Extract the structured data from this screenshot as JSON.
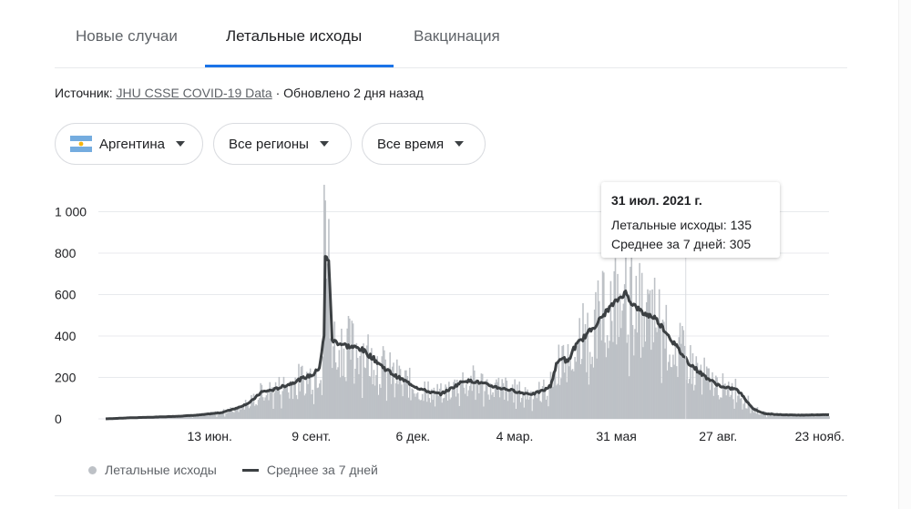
{
  "tabs": [
    {
      "label": "Новые случаи",
      "active": false
    },
    {
      "label": "Летальные исходы",
      "active": true
    },
    {
      "label": "Вакцинация",
      "active": false
    }
  ],
  "source": {
    "prefix": "Источник: ",
    "link": "JHU CSSE COVID-19 Data",
    "suffix": " · Обновлено 2 дня назад"
  },
  "filters": {
    "country": "Аргентина",
    "country_flag_icon": "argentina-flag-icon",
    "region": "Все регионы",
    "period": "Все время"
  },
  "tooltip": {
    "date": "31 июл. 2021 г.",
    "deaths_label": "Летальные исходы: ",
    "deaths_value": "135",
    "avg_label": "Среднее за 7 дней: ",
    "avg_value": "305"
  },
  "legend": {
    "bars": "Летальные исходы",
    "line": "Среднее за 7 дней"
  },
  "colors": {
    "accent": "#1a73e8",
    "bars": "#bdc1c6",
    "line": "#3c4043"
  },
  "chart_data": {
    "type": "bar",
    "series": [
      {
        "name": "Летальные исходы",
        "kind": "bar",
        "color": "#bdc1c6"
      },
      {
        "name": "Среднее за 7 дней",
        "kind": "line",
        "color": "#3c4043"
      }
    ],
    "ylim": [
      0,
      1150
    ],
    "yticks": [
      0,
      200,
      400,
      600,
      800,
      1000
    ],
    "ytick_labels": [
      "0",
      "200",
      "400",
      "600",
      "800",
      "1 000"
    ],
    "xticks": [
      {
        "label": "13 июн.",
        "day": 90
      },
      {
        "label": "9 сент.",
        "day": 178
      },
      {
        "label": "6 дек.",
        "day": 266
      },
      {
        "label": "4 мар.",
        "day": 354
      },
      {
        "label": "31 мая",
        "day": 442
      },
      {
        "label": "27 авг.",
        "day": 530
      },
      {
        "label": "23 нояб.",
        "day": 618
      }
    ],
    "avg_anchors": [
      [
        0,
        0
      ],
      [
        20,
        5
      ],
      [
        40,
        8
      ],
      [
        60,
        12
      ],
      [
        80,
        18
      ],
      [
        100,
        30
      ],
      [
        115,
        55
      ],
      [
        125,
        80
      ],
      [
        135,
        130
      ],
      [
        145,
        140
      ],
      [
        160,
        170
      ],
      [
        170,
        195
      ],
      [
        180,
        215
      ],
      [
        185,
        250
      ],
      [
        189,
        400
      ],
      [
        190,
        780
      ],
      [
        193,
        770
      ],
      [
        196,
        380
      ],
      [
        200,
        370
      ],
      [
        210,
        350
      ],
      [
        220,
        340
      ],
      [
        230,
        300
      ],
      [
        240,
        250
      ],
      [
        250,
        210
      ],
      [
        260,
        180
      ],
      [
        270,
        150
      ],
      [
        280,
        130
      ],
      [
        290,
        120
      ],
      [
        300,
        150
      ],
      [
        310,
        185
      ],
      [
        320,
        180
      ],
      [
        330,
        165
      ],
      [
        340,
        150
      ],
      [
        350,
        140
      ],
      [
        360,
        125
      ],
      [
        370,
        120
      ],
      [
        380,
        140
      ],
      [
        385,
        160
      ],
      [
        390,
        260
      ],
      [
        395,
        300
      ],
      [
        400,
        270
      ],
      [
        405,
        340
      ],
      [
        415,
        400
      ],
      [
        425,
        460
      ],
      [
        435,
        530
      ],
      [
        445,
        585
      ],
      [
        450,
        610
      ],
      [
        455,
        560
      ],
      [
        465,
        510
      ],
      [
        475,
        490
      ],
      [
        485,
        420
      ],
      [
        495,
        340
      ],
      [
        505,
        270
      ],
      [
        515,
        220
      ],
      [
        525,
        180
      ],
      [
        535,
        150
      ],
      [
        545,
        145
      ],
      [
        550,
        120
      ],
      [
        560,
        50
      ],
      [
        570,
        25
      ],
      [
        585,
        20
      ],
      [
        600,
        18
      ],
      [
        620,
        20
      ]
    ],
    "tooltip_day": 502
  }
}
